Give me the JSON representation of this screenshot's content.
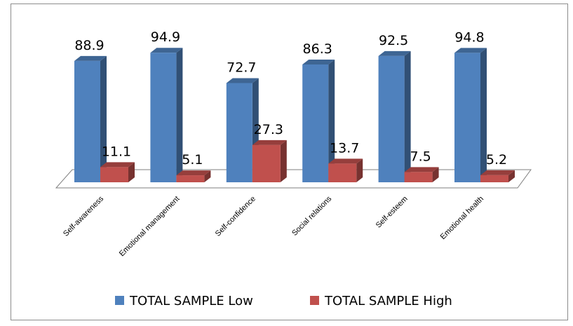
{
  "chart_data": {
    "type": "bar",
    "categories": [
      "Self-awareness",
      "Emotional management",
      "Self-confidence",
      "Social relations",
      "Self-esteem",
      "Emotional health"
    ],
    "series": [
      {
        "name": "TOTAL SAMPLE Low",
        "values": [
          88.9,
          94.9,
          72.7,
          86.3,
          92.5,
          94.8
        ],
        "color": "#4F81BD"
      },
      {
        "name": "TOTAL SAMPLE High",
        "values": [
          11.1,
          5.1,
          27.3,
          13.7,
          7.5,
          5.2
        ],
        "color": "#C0504D"
      }
    ],
    "value_labels": {
      "low": [
        "88.9",
        "94.9",
        "72.7",
        "86.3",
        "92.5",
        "94.8"
      ],
      "high": [
        "11.1",
        "5.1",
        "27.3",
        "13.7",
        "7.5",
        "5.2"
      ]
    },
    "ylim": [
      0,
      100
    ],
    "grid": false,
    "three_d": true,
    "legend": {
      "position": "bottom",
      "entries": [
        "TOTAL SAMPLE Low",
        "TOTAL SAMPLE High"
      ]
    }
  }
}
